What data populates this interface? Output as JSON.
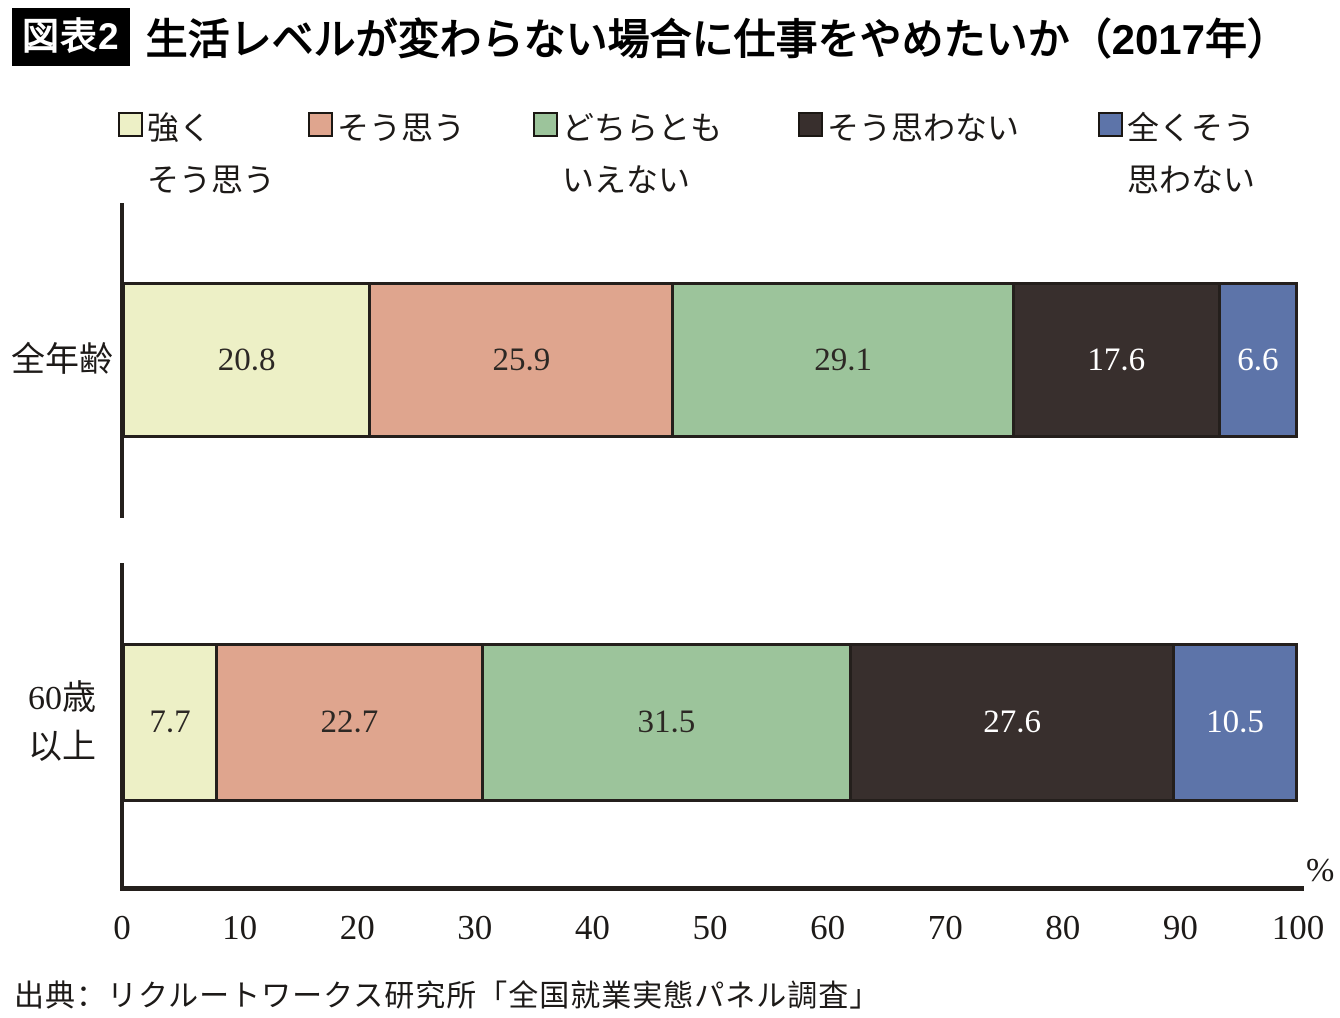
{
  "figure": {
    "tag": "図表2",
    "title": "生活レベルが変わらない場合に仕事をやめたいか（2017年）"
  },
  "legend": {
    "items": [
      {
        "label": "強く\nそう思う",
        "color": "#edf0c6"
      },
      {
        "label": "そう思う",
        "color": "#dfa58e"
      },
      {
        "label": "どちらとも\nいえない",
        "color": "#9cc49b"
      },
      {
        "label": "そう思わない",
        "color": "#382f2d"
      },
      {
        "label": "全くそう\n思わない",
        "color": "#5d74a9"
      }
    ]
  },
  "chart_data": {
    "type": "bar",
    "stacked": true,
    "orientation": "horizontal",
    "categories": [
      "全年齢",
      "60歳以上"
    ],
    "category_display_lines": [
      "全年齢",
      "60歳\n以上"
    ],
    "series": [
      {
        "name": "強くそう思う",
        "color": "#edf0c6",
        "text_color": "#2c2824",
        "values": [
          20.8,
          7.7
        ]
      },
      {
        "name": "そう思う",
        "color": "#dfa58e",
        "text_color": "#2c2824",
        "values": [
          25.9,
          22.7
        ]
      },
      {
        "name": "どちらともいえない",
        "color": "#9cc49b",
        "text_color": "#2c2824",
        "values": [
          29.1,
          31.5
        ]
      },
      {
        "name": "そう思わない",
        "color": "#382f2d",
        "text_color": "#ffffff",
        "values": [
          17.6,
          27.6
        ]
      },
      {
        "name": "全くそう思わない",
        "color": "#5d74a9",
        "text_color": "#ffffff",
        "values": [
          6.6,
          10.5
        ]
      }
    ],
    "x_ticks": [
      "0",
      "10",
      "20",
      "30",
      "40",
      "50",
      "60",
      "70",
      "80",
      "90",
      "100"
    ],
    "x_unit": "%",
    "xlim": [
      0,
      100
    ],
    "grid": false,
    "legend_position": "top"
  },
  "source": "出典：リクルートワークス研究所「全国就業実態パネル調査」"
}
